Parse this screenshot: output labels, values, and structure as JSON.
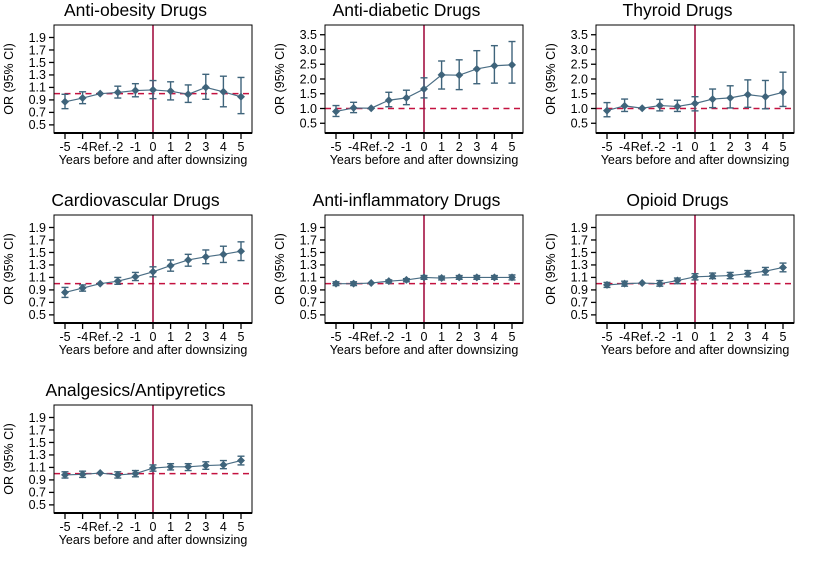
{
  "figure": {
    "colors": {
      "marker": "#3f647b",
      "line": "#4a6d84",
      "vline": "#a31243",
      "hline_dashed": "#c41240",
      "axis": "#000000",
      "background": "#ffffff"
    },
    "layout": {
      "rows": 3,
      "cols": 3,
      "panel_count": 7
    }
  },
  "chart_data": [
    {
      "type": "line",
      "title": "Anti-obesity Drugs",
      "xlabel": "Years before and after downsizing",
      "ylabel": "OR  (95% CI)",
      "categories": [
        "-5",
        "-4",
        "Ref.",
        "-2",
        "-1",
        "0",
        "1",
        "2",
        "3",
        "4",
        "5"
      ],
      "y_ticks": [
        "0.5",
        "0.7",
        "0.9",
        "1.1",
        "1.3",
        "1.5",
        "1.7",
        "1.9"
      ],
      "ylim": [
        0.37,
        2.1
      ],
      "vline_at_category": "0",
      "hline_dashed_at": 1.0,
      "legend": "none",
      "grid": false,
      "series": [
        {
          "name": "OR",
          "values": [
            0.87,
            0.93,
            1.0,
            1.02,
            1.05,
            1.06,
            1.04,
            0.99,
            1.1,
            1.03,
            0.95
          ],
          "ci_low": [
            0.76,
            0.84,
            1.0,
            0.93,
            0.95,
            0.92,
            0.9,
            0.86,
            0.91,
            0.79,
            0.68
          ],
          "ci_high": [
            0.99,
            1.03,
            1.0,
            1.12,
            1.16,
            1.21,
            1.19,
            1.14,
            1.31,
            1.28,
            1.26
          ]
        }
      ]
    },
    {
      "type": "line",
      "title": "Anti-diabetic Drugs",
      "xlabel": "Years before and after downsizing",
      "ylabel": "OR  (95% CI)",
      "categories": [
        "-5",
        "-4",
        "Ref.",
        "-2",
        "-1",
        "0",
        "1",
        "2",
        "3",
        "4",
        "5"
      ],
      "y_ticks": [
        "0.5",
        "1.0",
        "1.5",
        "2.0",
        "2.5",
        "3.0",
        "3.5"
      ],
      "ylim": [
        0.17,
        3.83
      ],
      "vline_at_category": "0",
      "hline_dashed_at": 1.0,
      "legend": "none",
      "grid": false,
      "series": [
        {
          "name": "OR",
          "values": [
            0.9,
            1.02,
            1.01,
            1.28,
            1.36,
            1.66,
            2.14,
            2.13,
            2.34,
            2.45,
            2.48
          ],
          "ci_low": [
            0.73,
            0.86,
            1.01,
            1.06,
            1.13,
            1.36,
            1.66,
            1.64,
            1.84,
            1.86,
            1.86
          ],
          "ci_high": [
            1.1,
            1.21,
            1.01,
            1.55,
            1.62,
            2.04,
            2.61,
            2.65,
            2.96,
            3.13,
            3.27
          ]
        }
      ]
    },
    {
      "type": "line",
      "title": "Thyroid Drugs",
      "xlabel": "Years before and after downsizing",
      "ylabel": "OR  (95% CI)",
      "categories": [
        "-5",
        "-4",
        "Ref.",
        "-2",
        "-1",
        "0",
        "1",
        "2",
        "3",
        "4",
        "5"
      ],
      "y_ticks": [
        "0.5",
        "1.0",
        "1.5",
        "2.0",
        "2.5",
        "3.0",
        "3.5"
      ],
      "ylim": [
        0.17,
        3.83
      ],
      "vline_at_category": "0",
      "hline_dashed_at": 1.0,
      "legend": "none",
      "grid": false,
      "series": [
        {
          "name": "OR",
          "values": [
            0.93,
            1.09,
            1.01,
            1.1,
            1.07,
            1.17,
            1.32,
            1.36,
            1.47,
            1.4,
            1.55
          ],
          "ci_low": [
            0.72,
            0.9,
            1.01,
            0.92,
            0.9,
            0.92,
            1.03,
            1.02,
            1.04,
            0.99,
            1.07
          ],
          "ci_high": [
            1.2,
            1.32,
            1.01,
            1.31,
            1.28,
            1.4,
            1.66,
            1.77,
            1.97,
            1.95,
            2.23
          ]
        }
      ]
    },
    {
      "type": "line",
      "title": "Cardiovascular Drugs",
      "xlabel": "Years before and after downsizing",
      "ylabel": "OR  (95% CI)",
      "categories": [
        "-5",
        "-4",
        "Ref.",
        "-2",
        "-1",
        "0",
        "1",
        "2",
        "3",
        "4",
        "5"
      ],
      "y_ticks": [
        "0.5",
        "0.7",
        "0.9",
        "1.1",
        "1.3",
        "1.5",
        "1.7",
        "1.9"
      ],
      "ylim": [
        0.37,
        2.1
      ],
      "vline_at_category": "0",
      "hline_dashed_at": 1.0,
      "legend": "none",
      "grid": false,
      "series": [
        {
          "name": "OR",
          "values": [
            0.86,
            0.93,
            1.0,
            1.04,
            1.11,
            1.19,
            1.29,
            1.38,
            1.43,
            1.47,
            1.52
          ],
          "ci_low": [
            0.78,
            0.88,
            1.0,
            0.99,
            1.05,
            1.11,
            1.2,
            1.28,
            1.32,
            1.34,
            1.37
          ],
          "ci_high": [
            0.94,
            0.98,
            1.0,
            1.1,
            1.18,
            1.27,
            1.38,
            1.47,
            1.54,
            1.6,
            1.67
          ]
        }
      ]
    },
    {
      "type": "line",
      "title": "Anti-inflammatory Drugs",
      "xlabel": "Years before and after downsizing",
      "ylabel": "OR  (95% CI)",
      "categories": [
        "-5",
        "-4",
        "Ref.",
        "-2",
        "-1",
        "0",
        "1",
        "2",
        "3",
        "4",
        "5"
      ],
      "y_ticks": [
        "0.5",
        "0.7",
        "0.9",
        "1.1",
        "1.3",
        "1.5",
        "1.7",
        "1.9"
      ],
      "ylim": [
        0.37,
        2.1
      ],
      "vline_at_category": "0",
      "hline_dashed_at": 1.0,
      "legend": "none",
      "grid": false,
      "series": [
        {
          "name": "OR",
          "values": [
            1.0,
            1.0,
            1.01,
            1.04,
            1.06,
            1.1,
            1.09,
            1.1,
            1.1,
            1.1,
            1.1
          ],
          "ci_low": [
            0.97,
            0.97,
            1.01,
            1.01,
            1.03,
            1.07,
            1.06,
            1.07,
            1.07,
            1.07,
            1.06
          ],
          "ci_high": [
            1.03,
            1.03,
            1.01,
            1.06,
            1.08,
            1.13,
            1.12,
            1.13,
            1.13,
            1.13,
            1.14
          ]
        }
      ]
    },
    {
      "type": "line",
      "title": "Opioid Drugs",
      "xlabel": "Years before and after downsizing",
      "ylabel": "OR  (95% CI)",
      "categories": [
        "-5",
        "-4",
        "Ref.",
        "-2",
        "-1",
        "0",
        "1",
        "2",
        "3",
        "4",
        "5"
      ],
      "y_ticks": [
        "0.5",
        "0.7",
        "0.9",
        "1.1",
        "1.3",
        "1.5",
        "1.7",
        "1.9"
      ],
      "ylim": [
        0.37,
        2.1
      ],
      "vline_at_category": "0",
      "hline_dashed_at": 1.0,
      "legend": "none",
      "grid": false,
      "series": [
        {
          "name": "OR",
          "values": [
            0.98,
            1.0,
            1.01,
            1.0,
            1.05,
            1.11,
            1.12,
            1.13,
            1.16,
            1.2,
            1.26
          ],
          "ci_low": [
            0.94,
            0.96,
            1.01,
            0.96,
            1.0,
            1.06,
            1.08,
            1.08,
            1.11,
            1.14,
            1.19
          ],
          "ci_high": [
            1.02,
            1.04,
            1.01,
            1.05,
            1.09,
            1.16,
            1.17,
            1.18,
            1.21,
            1.26,
            1.33
          ]
        }
      ]
    },
    {
      "type": "line",
      "title": "Analgesics/Antipyretics",
      "xlabel": "Years before and after downsizing",
      "ylabel": "OR  (95% CI)",
      "categories": [
        "-5",
        "-4",
        "Ref.",
        "-2",
        "-1",
        "0",
        "1",
        "2",
        "3",
        "4",
        "5"
      ],
      "y_ticks": [
        "0.5",
        "0.7",
        "0.9",
        "1.1",
        "1.3",
        "1.5",
        "1.7",
        "1.9"
      ],
      "ylim": [
        0.37,
        2.1
      ],
      "vline_at_category": "0",
      "hline_dashed_at": 1.0,
      "legend": "none",
      "grid": false,
      "series": [
        {
          "name": "OR",
          "values": [
            0.98,
            0.99,
            1.01,
            0.98,
            1.0,
            1.09,
            1.11,
            1.11,
            1.13,
            1.14,
            1.21
          ],
          "ci_low": [
            0.93,
            0.94,
            1.01,
            0.93,
            0.95,
            1.04,
            1.06,
            1.05,
            1.07,
            1.08,
            1.14
          ],
          "ci_high": [
            1.03,
            1.04,
            1.01,
            1.03,
            1.05,
            1.14,
            1.16,
            1.16,
            1.19,
            1.21,
            1.28
          ]
        }
      ]
    }
  ]
}
